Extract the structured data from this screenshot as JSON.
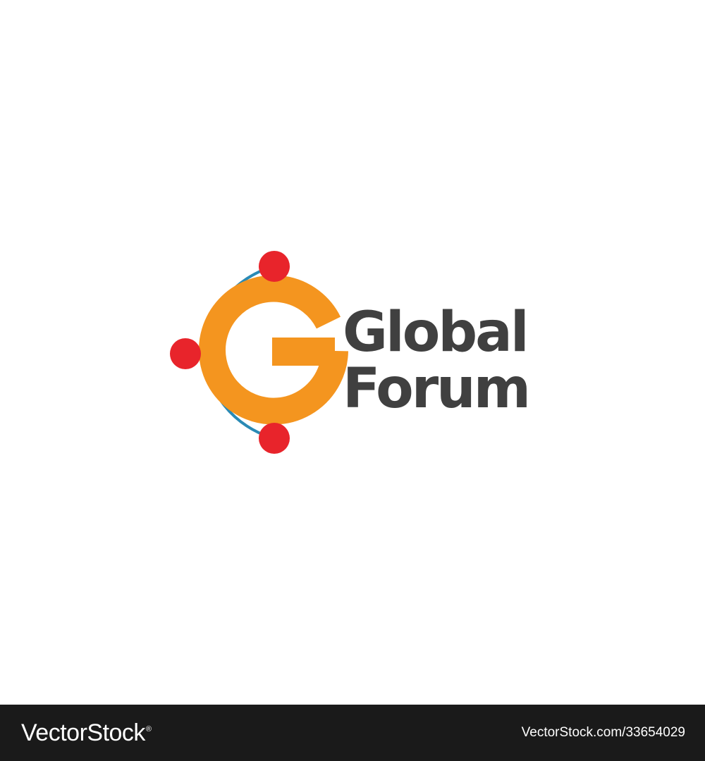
{
  "logo": {
    "line1": "Global",
    "line2": "Forum",
    "colors": {
      "letter_mark": "#f4951f",
      "orbit_arc": "#2a8ab5",
      "nodes": "#e8242b",
      "wordmark": "#404040"
    },
    "icons": [
      "g-letter-mark",
      "orbit-arc",
      "orbit-node"
    ]
  },
  "footer": {
    "brand": "VectorStock",
    "registered_mark": "®",
    "image_id": "VectorStock.com/33654029",
    "background": "#1a1a1a"
  }
}
